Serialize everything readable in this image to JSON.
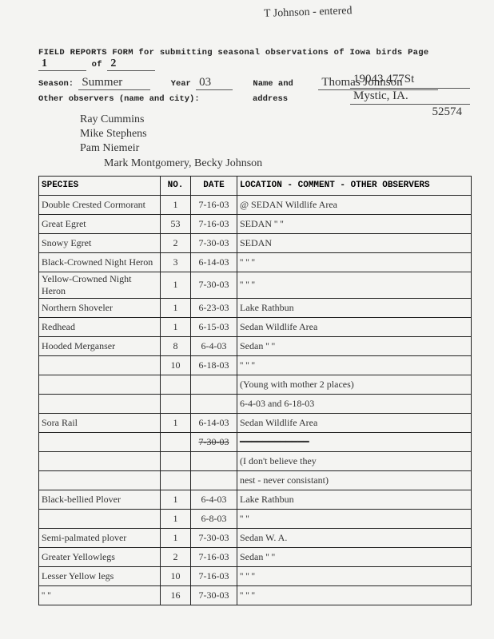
{
  "top_note": "T Johnson - entered",
  "header": {
    "title_pre": "FIELD REPORTS FORM for submitting seasonal observations of Iowa birds  Page ",
    "page_cur": "1",
    "page_of": " of ",
    "page_tot": "2",
    "season_label": "Season:",
    "season": "Summer",
    "year_label": "Year",
    "year": "03",
    "name_label": "Name and",
    "name": "Thomas Johnson",
    "other_label": "Other observers  (name and city):",
    "addr_label": "address",
    "addr1": "19043  477St",
    "addr2": "Mystic, IA.",
    "addr3": "52574"
  },
  "observers": [
    "Ray Cummins",
    "Mike Stephens",
    "Pam Niemeir",
    "Mark Montgomery, Becky Johnson"
  ],
  "columns": {
    "species": "SPECIES",
    "no": "NO.",
    "date": "DATE",
    "loc": "LOCATION - COMMENT - OTHER OBSERVERS"
  },
  "rows": [
    {
      "species": "Double Crested Cormorant",
      "no": "1",
      "date": "7-16-03",
      "loc": "@  SEDAN Wildlife Area"
    },
    {
      "species": "Great Egret",
      "no": "53",
      "date": "7-16-03",
      "loc": "SEDAN      ''        ''"
    },
    {
      "species": "Snowy Egret",
      "no": "2",
      "date": "7-30-03",
      "loc": "SEDAN"
    },
    {
      "species": "Black-Crowned Night Heron",
      "no": "3",
      "date": "6-14-03",
      "loc": "   ''        ''        ''"
    },
    {
      "species": "Yellow-Crowned Night Heron",
      "no": "1",
      "date": "7-30-03",
      "loc": "   ''        ''        ''"
    },
    {
      "species": "Northern Shoveler",
      "no": "1",
      "date": "6-23-03",
      "loc": "Lake Rathbun"
    },
    {
      "species": "Redhead",
      "no": "1",
      "date": "6-15-03",
      "loc": "Sedan   Wildlife Area"
    },
    {
      "species": "Hooded Merganser",
      "no": "8",
      "date": "6-4-03",
      "loc": "Sedan       ''       ''"
    },
    {
      "species": "",
      "no": "10",
      "date": "6-18-03",
      "loc": "   ''        ''        ''"
    },
    {
      "species": "",
      "no": "",
      "date": "",
      "loc": "(Young with mother 2 places)"
    },
    {
      "species": "",
      "no": "",
      "date": "",
      "loc": "6-4-03   and 6-18-03"
    },
    {
      "species": "Sora Rail",
      "no": "1",
      "date": "6-14-03",
      "loc": "Sedan Wildlife Area"
    },
    {
      "species": "",
      "no": "",
      "date": "7-30-03",
      "loc": "━━━━━━━━━━━━",
      "strike_date": true
    },
    {
      "species": "",
      "no": "",
      "date": "",
      "loc": "(I don't believe they"
    },
    {
      "species": "",
      "no": "",
      "date": "",
      "loc": "nest - never consistant)"
    },
    {
      "species": "Black-bellied Plover",
      "no": "1",
      "date": "6-4-03",
      "loc": "Lake Rathbun"
    },
    {
      "species": "",
      "no": "1",
      "date": "6-8-03",
      "loc": "   ''        ''"
    },
    {
      "species": "Semi-palmated plover",
      "no": "1",
      "date": "7-30-03",
      "loc": "Sedan    W.  A."
    },
    {
      "species": "Greater Yellowlegs",
      "no": "2",
      "date": "7-16-03",
      "loc": "Sedan     ''     ''"
    },
    {
      "species": "Lesser Yellow legs",
      "no": "10",
      "date": "7-16-03",
      "loc": "   ''        ''        ''"
    },
    {
      "species": "   ''     ''",
      "no": "16",
      "date": "7-30-03",
      "loc": "   ''        ''        ''"
    }
  ]
}
